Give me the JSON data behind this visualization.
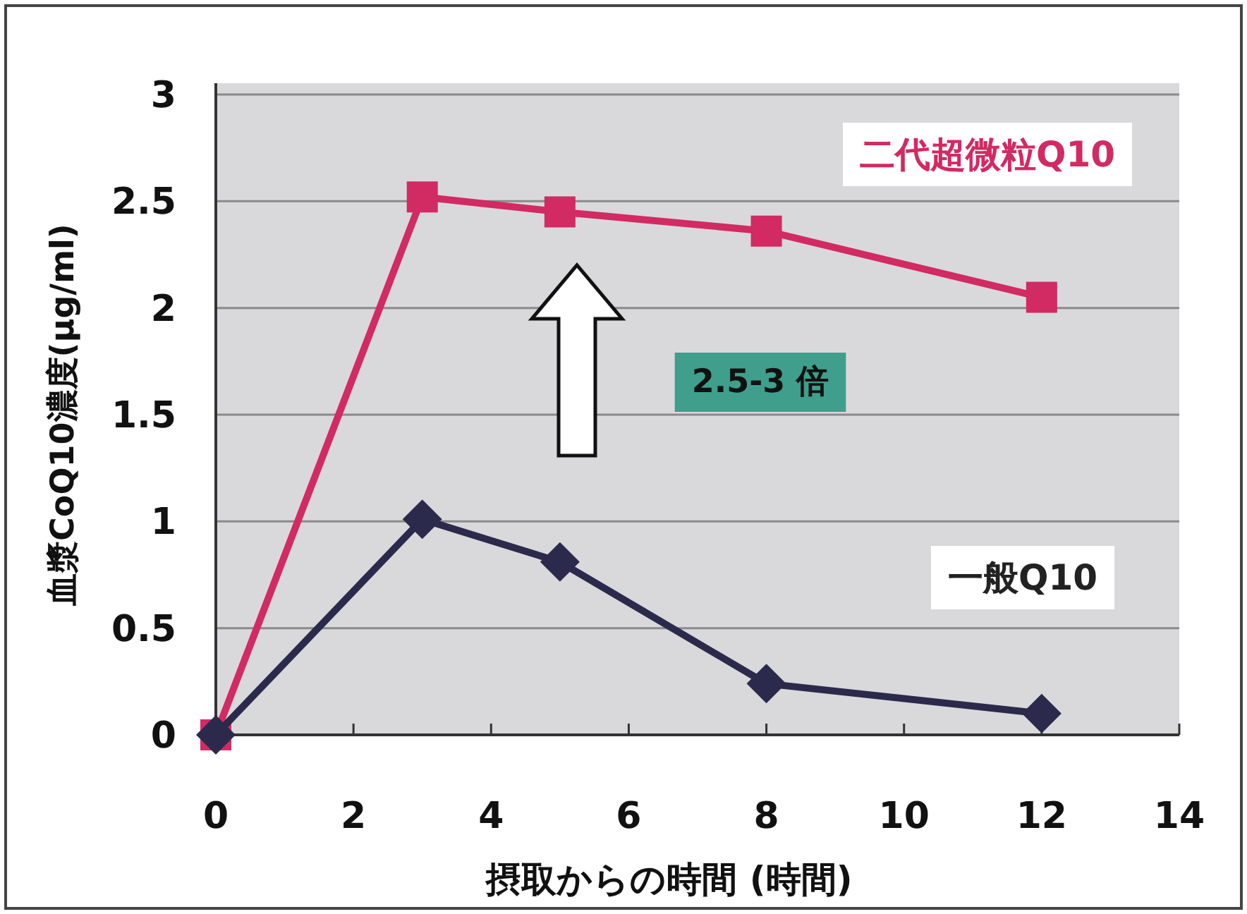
{
  "chart_data": {
    "type": "line",
    "xlabel": "摂取からの時間 (時間)",
    "ylabel": "血漿CoQ10濃度(μg/ml)",
    "x": [
      0,
      3,
      5,
      8,
      12
    ],
    "series": [
      {
        "name": "二代超微粒Q10",
        "color": "#d22a62",
        "marker": "square",
        "values": [
          0,
          2.52,
          2.45,
          2.36,
          2.05
        ]
      },
      {
        "name": "一般Q10",
        "color": "#2b2a4c",
        "marker": "diamond",
        "values": [
          0,
          1.01,
          0.81,
          0.24,
          0.1
        ]
      }
    ],
    "xlim": [
      0,
      14
    ],
    "xticks": [
      0,
      2,
      4,
      6,
      8,
      10,
      12,
      14
    ],
    "ylim": [
      0,
      3
    ],
    "yticks": [
      0,
      0.5,
      1,
      1.5,
      2,
      2.5,
      3
    ],
    "grid": "y",
    "annotations": [
      "2.5-3 倍"
    ]
  }
}
